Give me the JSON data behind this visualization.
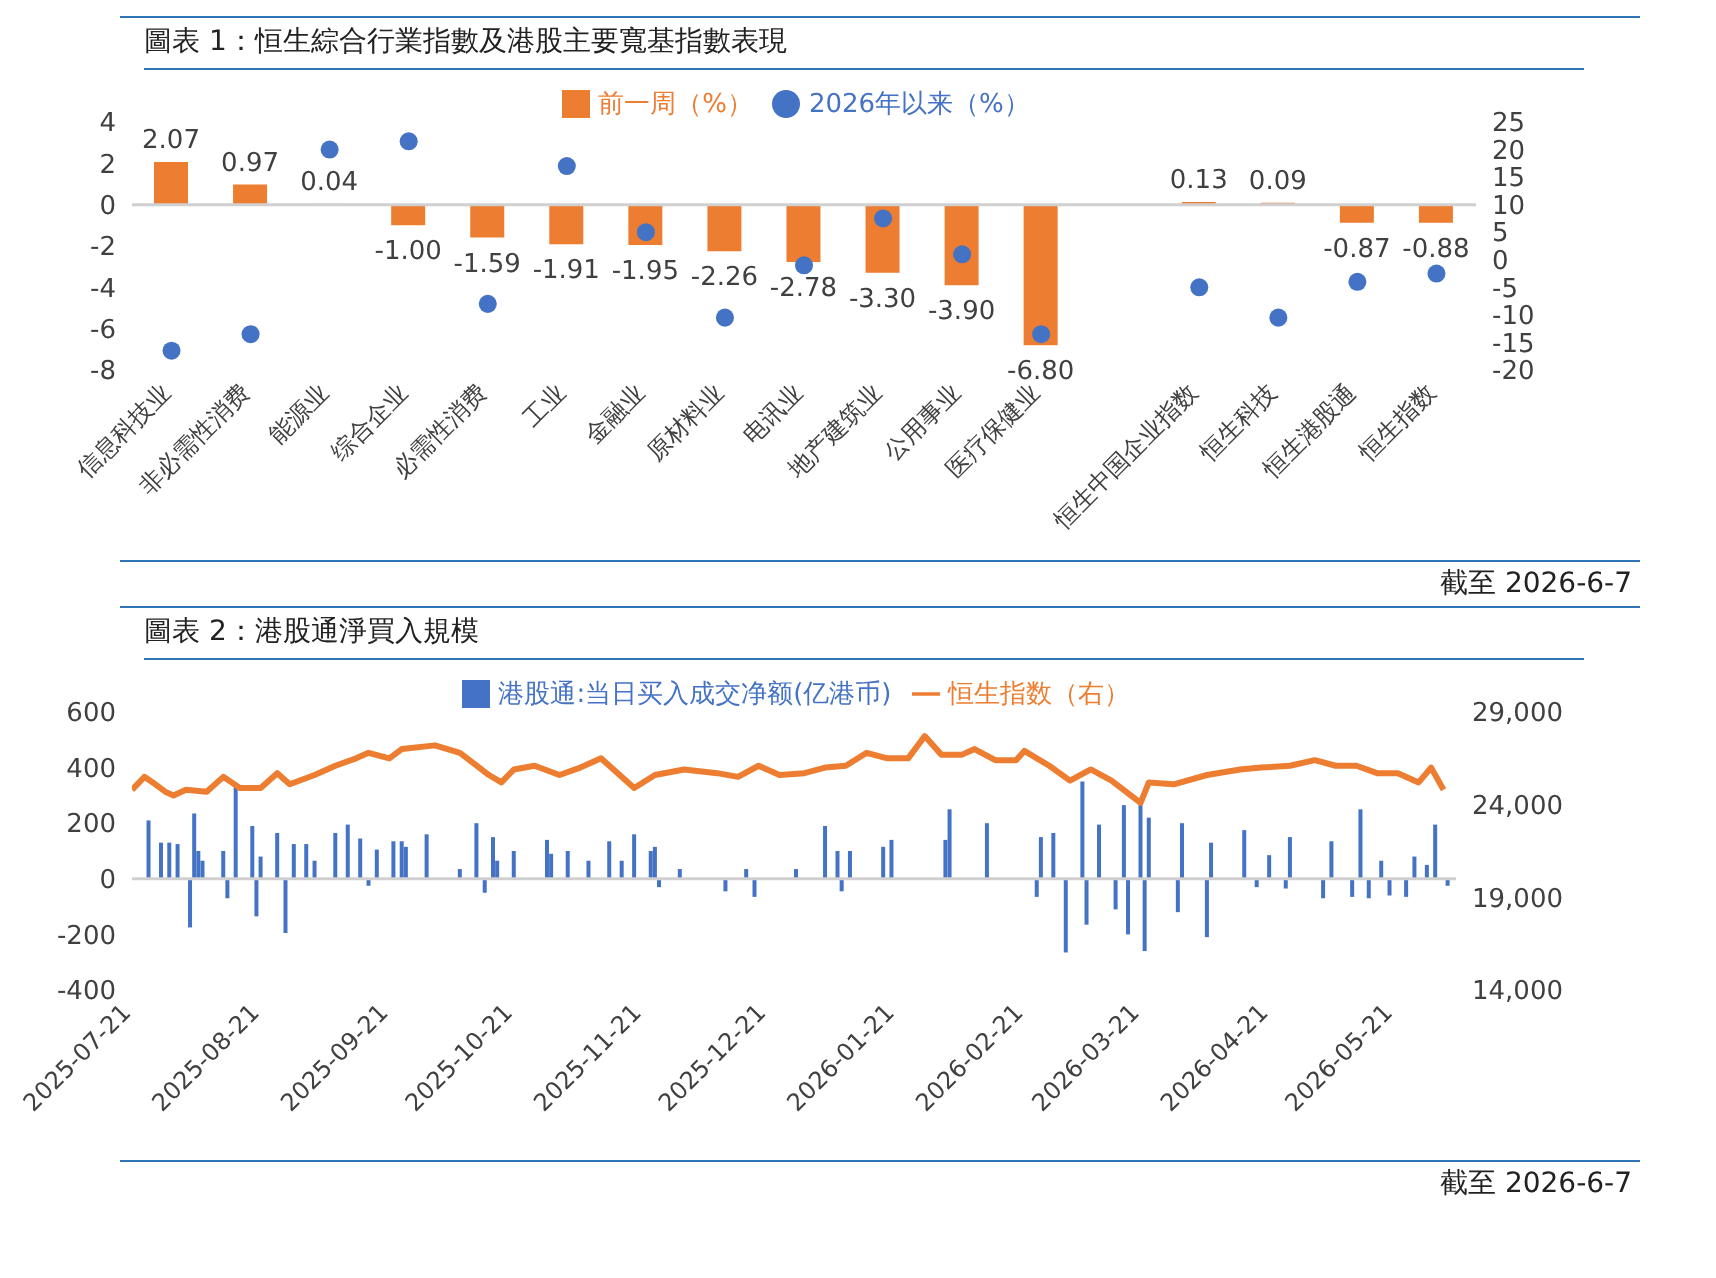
{
  "chart_data": [
    {
      "type": "bar",
      "title": "圖表 1：恒生綜合行業指數及港股主要寬基指數表現",
      "annotations": [
        "截至 2026-6-7"
      ],
      "categories": [
        "信息科技业",
        "非必需性消费",
        "能源业",
        "综合企业",
        "必需性消费",
        "工业",
        "金融业",
        "原材料业",
        "电讯业",
        "地产建筑业",
        "公用事业",
        "医疗保健业",
        null,
        "恒生中国企业指数",
        "恒生科技",
        "恒生港股通",
        "恒生指数"
      ],
      "series": [
        {
          "name": "前一周（%）",
          "color": "#ed7d31",
          "values": [
            2.07,
            0.97,
            0.04,
            -1.0,
            -1.59,
            -1.91,
            -1.95,
            -2.26,
            -2.78,
            -3.3,
            -3.9,
            -6.8,
            null,
            0.13,
            0.09,
            -0.87,
            -0.88
          ],
          "value_labels": [
            "2.07",
            "0.97",
            "0.04",
            "-1.00",
            "-1.59",
            "-1.91",
            "-1.95",
            "-2.26",
            "-2.78",
            "-3.30",
            "-3.90",
            "-6.80",
            null,
            "0.13",
            "0.09",
            "-0.87",
            "-0.88"
          ]
        },
        {
          "name": "2026年以来（%）",
          "type": "scatter",
          "axis": "y2",
          "color": "#4472c4",
          "values": [
            -16.5,
            -13.5,
            20,
            21.5,
            -8,
            17,
            5,
            -10.5,
            -1,
            7.5,
            1,
            -13.5,
            null,
            -5,
            -10.5,
            -4,
            -2.5
          ]
        }
      ],
      "ylim": [
        -8,
        4
      ],
      "yticks": [
        -8,
        -6,
        -4,
        -2,
        0,
        2,
        4
      ],
      "y2lim": [
        -20,
        25
      ],
      "y2ticks": [
        -20,
        -15,
        -10,
        -5,
        0,
        5,
        10,
        15,
        20,
        25
      ],
      "legend": "top",
      "marker": "circle"
    },
    {
      "type": "bar",
      "title": "圖表 2：港股通淨買入規模",
      "annotations": [
        "截至 2026-6-7"
      ],
      "xlim": [
        "2025-07-21",
        "2026-06-05"
      ],
      "xticks": [
        "2025-07-21",
        "2025-08-21",
        "2025-09-21",
        "2025-10-21",
        "2025-11-21",
        "2025-12-21",
        "2026-01-21",
        "2026-02-21",
        "2026-03-21",
        "2026-04-21",
        "2026-05-21"
      ],
      "series": [
        {
          "name": "港股通:当日买入成交净额(亿港币)",
          "color": "#4472c4",
          "x": [
            "2025-07-25",
            "2025-07-28",
            "2025-07-30",
            "2025-08-01",
            "2025-08-04",
            "2025-08-05",
            "2025-08-06",
            "2025-08-07",
            "2025-08-12",
            "2025-08-13",
            "2025-08-15",
            "2025-08-19",
            "2025-08-20",
            "2025-08-21",
            "2025-08-25",
            "2025-08-27",
            "2025-08-29",
            "2025-09-01",
            "2025-09-03",
            "2025-09-08",
            "2025-09-11",
            "2025-09-14",
            "2025-09-16",
            "2025-09-18",
            "2025-09-22",
            "2025-09-24",
            "2025-09-25",
            "2025-09-30",
            "2025-10-08",
            "2025-10-12",
            "2025-10-14",
            "2025-10-16",
            "2025-10-17",
            "2025-10-21",
            "2025-10-29",
            "2025-10-30",
            "2025-11-03",
            "2025-11-08",
            "2025-11-13",
            "2025-11-16",
            "2025-11-19",
            "2025-11-23",
            "2025-11-24",
            "2025-11-25",
            "2025-11-30",
            "2025-12-11",
            "2025-12-16",
            "2025-12-18",
            "2025-12-28",
            "2026-01-04",
            "2026-01-07",
            "2026-01-08",
            "2026-01-10",
            "2026-01-18",
            "2026-01-20",
            "2026-02-02",
            "2026-02-03",
            "2026-02-12",
            "2026-02-24",
            "2026-02-25",
            "2026-02-28",
            "2026-03-03",
            "2026-03-07",
            "2026-03-08",
            "2026-03-11",
            "2026-03-15",
            "2026-03-17",
            "2026-03-18",
            "2026-03-21",
            "2026-03-22",
            "2026-03-23",
            "2026-03-30",
            "2026-03-31",
            "2026-04-06",
            "2026-04-07",
            "2026-04-15",
            "2026-04-18",
            "2026-04-21",
            "2026-04-25",
            "2026-04-26",
            "2026-05-04",
            "2026-05-06",
            "2026-05-11",
            "2026-05-13",
            "2026-05-15",
            "2026-05-18",
            "2026-05-20",
            "2026-05-24",
            "2026-05-26",
            "2026-05-29",
            "2026-05-31",
            "2026-06-03"
          ],
          "values": [
            210,
            130,
            130,
            125,
            -175,
            235,
            100,
            65,
            100,
            -70,
            330,
            190,
            -135,
            80,
            165,
            -195,
            125,
            125,
            65,
            165,
            195,
            145,
            -25,
            105,
            135,
            135,
            115,
            160,
            35,
            200,
            -50,
            150,
            65,
            100,
            140,
            90,
            100,
            65,
            135,
            65,
            160,
            100,
            115,
            -30,
            35,
            -45,
            35,
            -65,
            35,
            190,
            100,
            -45,
            100,
            115,
            140,
            140,
            250,
            200,
            -65,
            150,
            165,
            -265,
            350,
            -165,
            195,
            -110,
            265,
            -200,
            280,
            -260,
            220,
            -120,
            200,
            -210,
            130,
            175,
            -30,
            85,
            -35,
            150,
            -70,
            135,
            -65,
            250,
            -70,
            65,
            -60,
            -65,
            80,
            50,
            195,
            -25
          ]
        },
        {
          "name": "恒生指数（右）",
          "type": "line",
          "axis": "y2",
          "color": "#ed7d31",
          "x": [
            "2025-07-21",
            "2025-07-24",
            "2025-07-26",
            "2025-07-29",
            "2025-07-31",
            "2025-08-03",
            "2025-08-08",
            "2025-08-12",
            "2025-08-16",
            "2025-08-21",
            "2025-08-25",
            "2025-08-28",
            "2025-09-03",
            "2025-09-08",
            "2025-09-13",
            "2025-09-16",
            "2025-09-21",
            "2025-09-24",
            "2025-10-02",
            "2025-10-08",
            "2025-10-15",
            "2025-10-18",
            "2025-10-21",
            "2025-10-26",
            "2025-11-01",
            "2025-11-06",
            "2025-11-11",
            "2025-11-13",
            "2025-11-19",
            "2025-11-24",
            "2025-12-01",
            "2025-12-09",
            "2025-12-14",
            "2025-12-19",
            "2025-12-24",
            "2025-12-30",
            "2026-01-04",
            "2026-01-09",
            "2026-01-14",
            "2026-01-19",
            "2026-01-24",
            "2026-01-28",
            "2026-02-01",
            "2026-02-06",
            "2026-02-09",
            "2026-02-14",
            "2026-02-19",
            "2026-02-21",
            "2026-02-27",
            "2026-03-04",
            "2026-03-09",
            "2026-03-14",
            "2026-03-21",
            "2026-03-23",
            "2026-03-29",
            "2026-04-06",
            "2026-04-14",
            "2026-04-19",
            "2026-04-26",
            "2026-05-02",
            "2026-05-07",
            "2026-05-12",
            "2026-05-17",
            "2026-05-22",
            "2026-05-27",
            "2026-05-30",
            "2026-06-02"
          ],
          "values": [
            24800,
            25500,
            25200,
            24700,
            24500,
            24800,
            24700,
            25500,
            24900,
            24900,
            25700,
            25100,
            25600,
            26100,
            26500,
            26800,
            26500,
            27000,
            27200,
            26800,
            25600,
            25200,
            25900,
            26100,
            25600,
            26000,
            26500,
            26100,
            24900,
            25600,
            25900,
            25700,
            25500,
            26100,
            25600,
            25700,
            26000,
            26100,
            26800,
            26500,
            26500,
            27700,
            26700,
            26700,
            27000,
            26400,
            26400,
            26900,
            26100,
            25300,
            25900,
            25300,
            24100,
            25200,
            25100,
            25600,
            25900,
            26000,
            26100,
            26400,
            26100,
            26100,
            25700,
            25700,
            25200,
            26000,
            24800
          ]
        }
      ],
      "ylim": [
        -400,
        600
      ],
      "yticks": [
        -400,
        -200,
        0,
        200,
        400,
        600
      ],
      "y2lim": [
        14000,
        29000
      ],
      "y2ticks": [
        {
          "value": 14000,
          "label": "14,000"
        },
        {
          "value": 19000,
          "label": "19,000"
        },
        {
          "value": 24000,
          "label": "24,000"
        },
        {
          "value": 29000,
          "label": "29,000"
        }
      ],
      "legend": "top",
      "marker": "none"
    }
  ]
}
